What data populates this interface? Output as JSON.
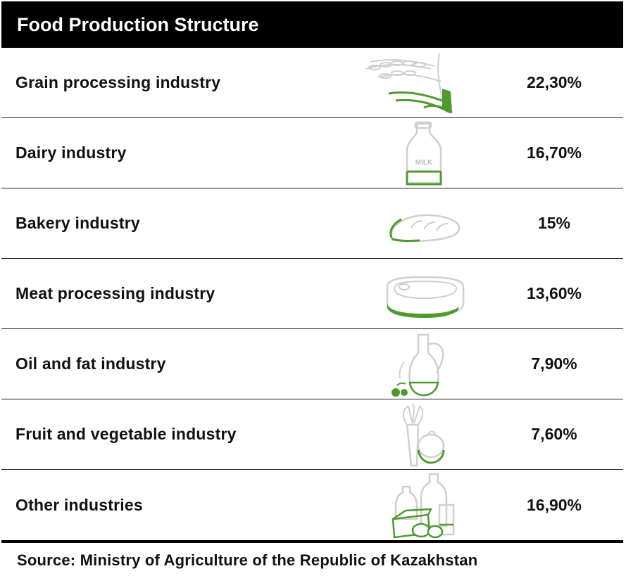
{
  "title": "Food Production Structure",
  "colors": {
    "header_bg": "#000000",
    "accent_green": "#4f9a2f",
    "icon_gray": "#cfcfcf"
  },
  "rows": [
    {
      "label": "Grain processing industry",
      "value": "22,30%",
      "icon": "wheat-icon"
    },
    {
      "label": "Dairy industry",
      "value": "16,70%",
      "icon": "milk-bottle-icon",
      "icon_text": "MILK"
    },
    {
      "label": "Bakery industry",
      "value": "15%",
      "icon": "bread-icon"
    },
    {
      "label": "Meat processing industry",
      "value": "13,60%",
      "icon": "steak-icon"
    },
    {
      "label": "Oil and fat industry",
      "value": "7,90%",
      "icon": "oil-jug-icon"
    },
    {
      "label": "Fruit and vegetable industry",
      "value": "7,60%",
      "icon": "vegetables-icon"
    },
    {
      "label": "Other industries",
      "value": "16,90%",
      "icon": "grocery-items-icon"
    }
  ],
  "source": "Source: Ministry of Agriculture of the Republic of Kazakhstan"
}
